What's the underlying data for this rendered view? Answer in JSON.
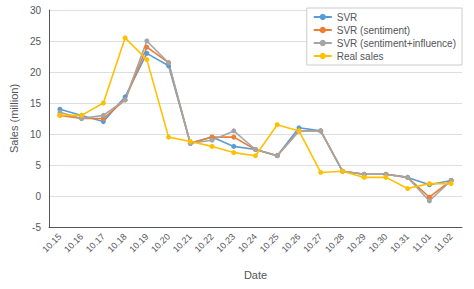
{
  "chart_data": {
    "type": "line",
    "xlabel": "Date",
    "ylabel": "Sales (million)",
    "categories": [
      "10.15",
      "10.16",
      "10.17",
      "10.18",
      "10.19",
      "10.20",
      "10.21",
      "10.22",
      "10.23",
      "10.24",
      "10.25",
      "10.26",
      "10.27",
      "10.28",
      "10.29",
      "10.30",
      "10.31",
      "11.01",
      "11.02"
    ],
    "series": [
      {
        "name": "SVR",
        "color": "#5b9bd5",
        "values": [
          14.0,
          13.0,
          12.0,
          16.0,
          23.0,
          21.0,
          8.5,
          9.5,
          8.0,
          7.5,
          6.5,
          11.0,
          10.5,
          4.0,
          3.5,
          3.5,
          3.0,
          1.8,
          2.5
        ]
      },
      {
        "name": "SVR (sentiment)",
        "color": "#ed7d31",
        "values": [
          13.0,
          12.5,
          12.5,
          15.5,
          24.0,
          21.5,
          8.5,
          9.5,
          9.5,
          7.5,
          6.5,
          10.5,
          10.5,
          4.0,
          3.5,
          3.5,
          3.0,
          -0.2,
          2.5
        ]
      },
      {
        "name": "SVR (sentiment+influence)",
        "color": "#a5a5a5",
        "values": [
          13.5,
          12.5,
          13.0,
          15.5,
          25.0,
          21.5,
          8.5,
          9.0,
          10.5,
          7.5,
          6.5,
          10.5,
          10.5,
          4.0,
          3.5,
          3.5,
          3.0,
          -0.8,
          2.5
        ]
      },
      {
        "name": "Real sales",
        "color": "#ffc000",
        "values": [
          13.0,
          13.0,
          15.0,
          25.5,
          22.0,
          9.5,
          8.8,
          8.0,
          7.0,
          6.5,
          11.5,
          10.5,
          3.8,
          4.0,
          3.0,
          3.0,
          1.2,
          2.0,
          2.0
        ]
      }
    ],
    "marker": "circle",
    "ylim": [
      -5,
      30
    ],
    "yticks": [
      -5,
      0,
      5,
      10,
      15,
      20,
      25,
      30
    ],
    "grid": true,
    "legend": "upper right"
  }
}
